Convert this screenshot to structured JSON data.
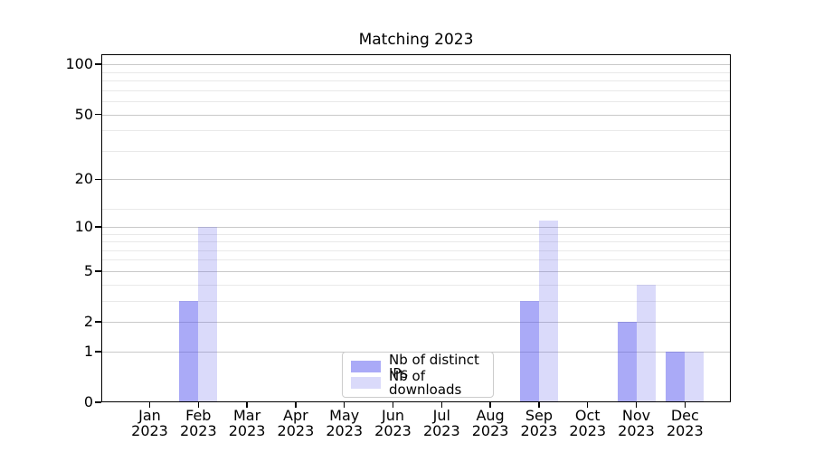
{
  "chart_data": {
    "type": "bar",
    "title": "Matching 2023",
    "categories": [
      "Jan",
      "Feb",
      "Mar",
      "Apr",
      "May",
      "Jun",
      "Jul",
      "Aug",
      "Sep",
      "Oct",
      "Nov",
      "Dec"
    ],
    "category_year": "2023",
    "series": [
      {
        "name": "Nb of distinct IPs",
        "color": "rgba(85,85,240,0.50)",
        "values": [
          0,
          3,
          0,
          0,
          0,
          0,
          0,
          0,
          3,
          0,
          2,
          1
        ]
      },
      {
        "name": "Nb of downloads",
        "color": "rgba(85,85,230,0.22)",
        "values": [
          0,
          10,
          0,
          0,
          0,
          0,
          0,
          0,
          11,
          0,
          4,
          1
        ]
      }
    ],
    "y_axis": {
      "scale": "log1p",
      "ticks": [
        0,
        1,
        2,
        5,
        10,
        20,
        50,
        100
      ],
      "minor_gridlines": [
        3,
        4,
        6,
        7,
        8,
        9,
        13,
        30,
        40,
        60,
        70,
        80,
        90
      ],
      "ylim": [
        0,
        115
      ]
    },
    "x_axis": {
      "ylim_note": ""
    },
    "legend_position": "lower center",
    "grid": true,
    "colors": {
      "bar_dark": "#aaaaf7",
      "bar_light": "#dadaf9",
      "grid_major": "#c9c9c9",
      "grid_minor": "#e9e9e9"
    }
  }
}
